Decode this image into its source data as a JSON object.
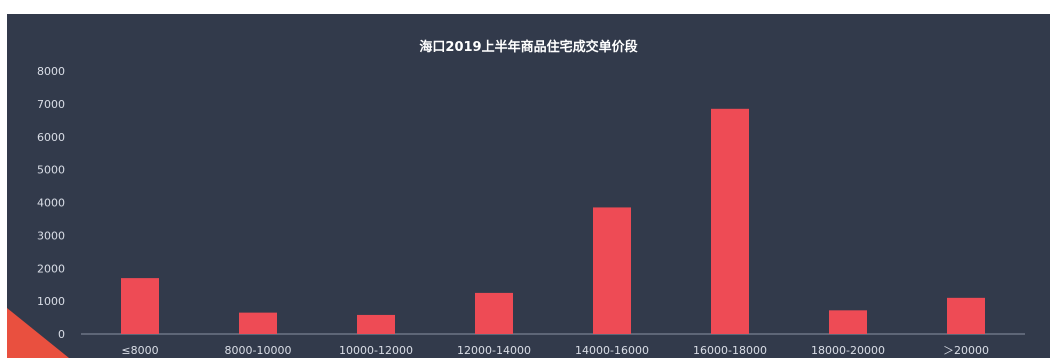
{
  "chart_data": {
    "type": "bar",
    "title": "海口2019上半年商品住宅成交单价段",
    "categories": [
      "≤8000",
      "8000-10000",
      "10000-12000",
      "12000-14000",
      "14000-16000",
      "16000-18000",
      "18000-20000",
      "＞20000"
    ],
    "values": [
      1700,
      650,
      580,
      1250,
      3850,
      6850,
      720,
      1100
    ],
    "yticks": [
      "0",
      "1000",
      "2000",
      "3000",
      "4000",
      "5000",
      "6000",
      "7000",
      "8000"
    ],
    "ylim": [
      0,
      8000
    ],
    "grid": false,
    "bar_color": "#ee4b55",
    "background_color": "#323a4b"
  }
}
